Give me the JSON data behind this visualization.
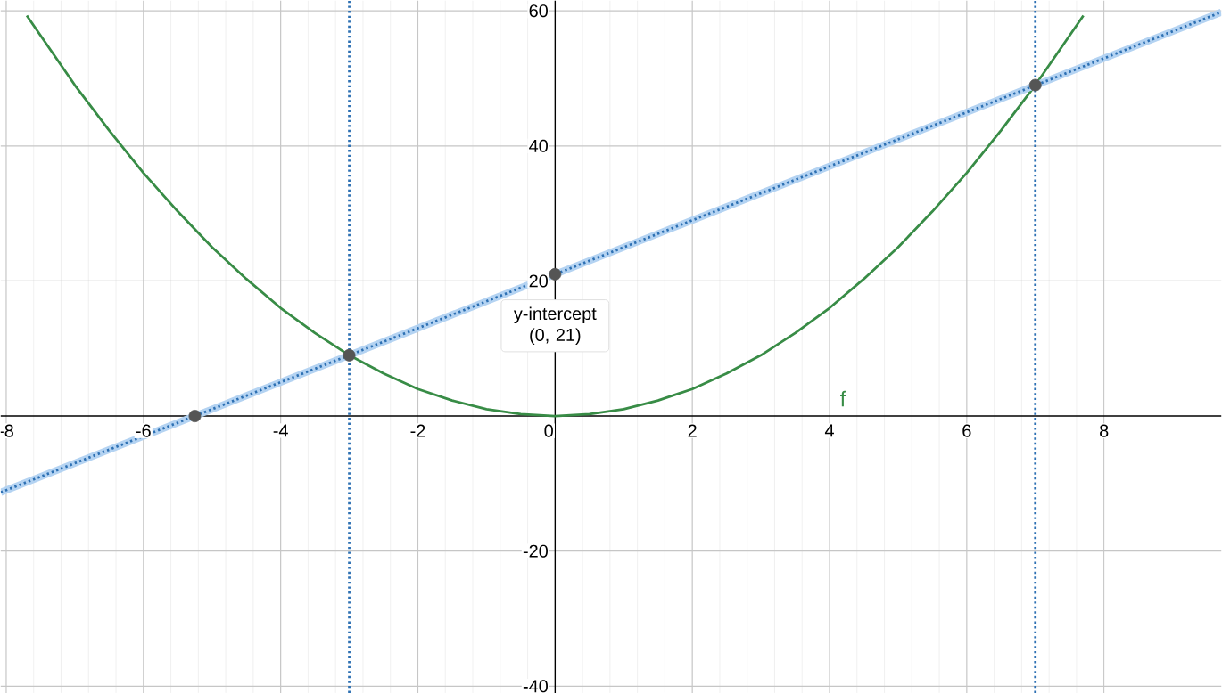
{
  "chart_data": {
    "type": "line",
    "xlim": [
      -8.08,
      9.71
    ],
    "ylim": [
      -41,
      61.5
    ],
    "xticks": [
      -8,
      -6,
      -4,
      -2,
      0,
      2,
      4,
      6,
      8
    ],
    "yticks": [
      -40,
      -20,
      20,
      40,
      60
    ],
    "grid": true,
    "series": [
      {
        "name": "f",
        "color": "#388c46",
        "x": [
          -7.7,
          -7,
          -6.5,
          -6,
          -5.5,
          -5,
          -4.5,
          -4,
          -3.5,
          -3,
          -2.5,
          -2,
          -1.5,
          -1,
          -0.5,
          0,
          0.5,
          1,
          1.5,
          2,
          2.5,
          3,
          3.5,
          4,
          4.5,
          5,
          5.5,
          6,
          6.5,
          7,
          7.7
        ],
        "values": [
          59.3,
          49,
          42.3,
          36,
          30.3,
          25,
          20.3,
          16,
          12.3,
          9,
          6.3,
          4,
          2.3,
          1,
          0.3,
          0,
          0.3,
          1,
          2.3,
          4,
          6.3,
          9,
          12.3,
          16,
          20.3,
          25,
          30.3,
          36,
          42.3,
          49,
          59.3
        ]
      },
      {
        "color": "#2d70b3",
        "line_style": "dotted",
        "x": [
          -8.08,
          9.71
        ],
        "values": [
          -11.3,
          59.8
        ]
      },
      {
        "type": "scatter",
        "color": "#555555",
        "marker": "circle",
        "x": [
          -5.25,
          -3,
          0,
          7
        ],
        "values": [
          0,
          9,
          21,
          49
        ]
      }
    ],
    "ref_lines": [
      {
        "axis": "x",
        "value": -3,
        "color": "#2d70b3",
        "line_style": "dotted"
      },
      {
        "axis": "x",
        "value": 7,
        "color": "#2d70b3",
        "line_style": "dotted"
      }
    ],
    "annotations": [
      {
        "text": "y-intercept (0, 21)",
        "x": 0,
        "y": 21
      }
    ]
  }
}
